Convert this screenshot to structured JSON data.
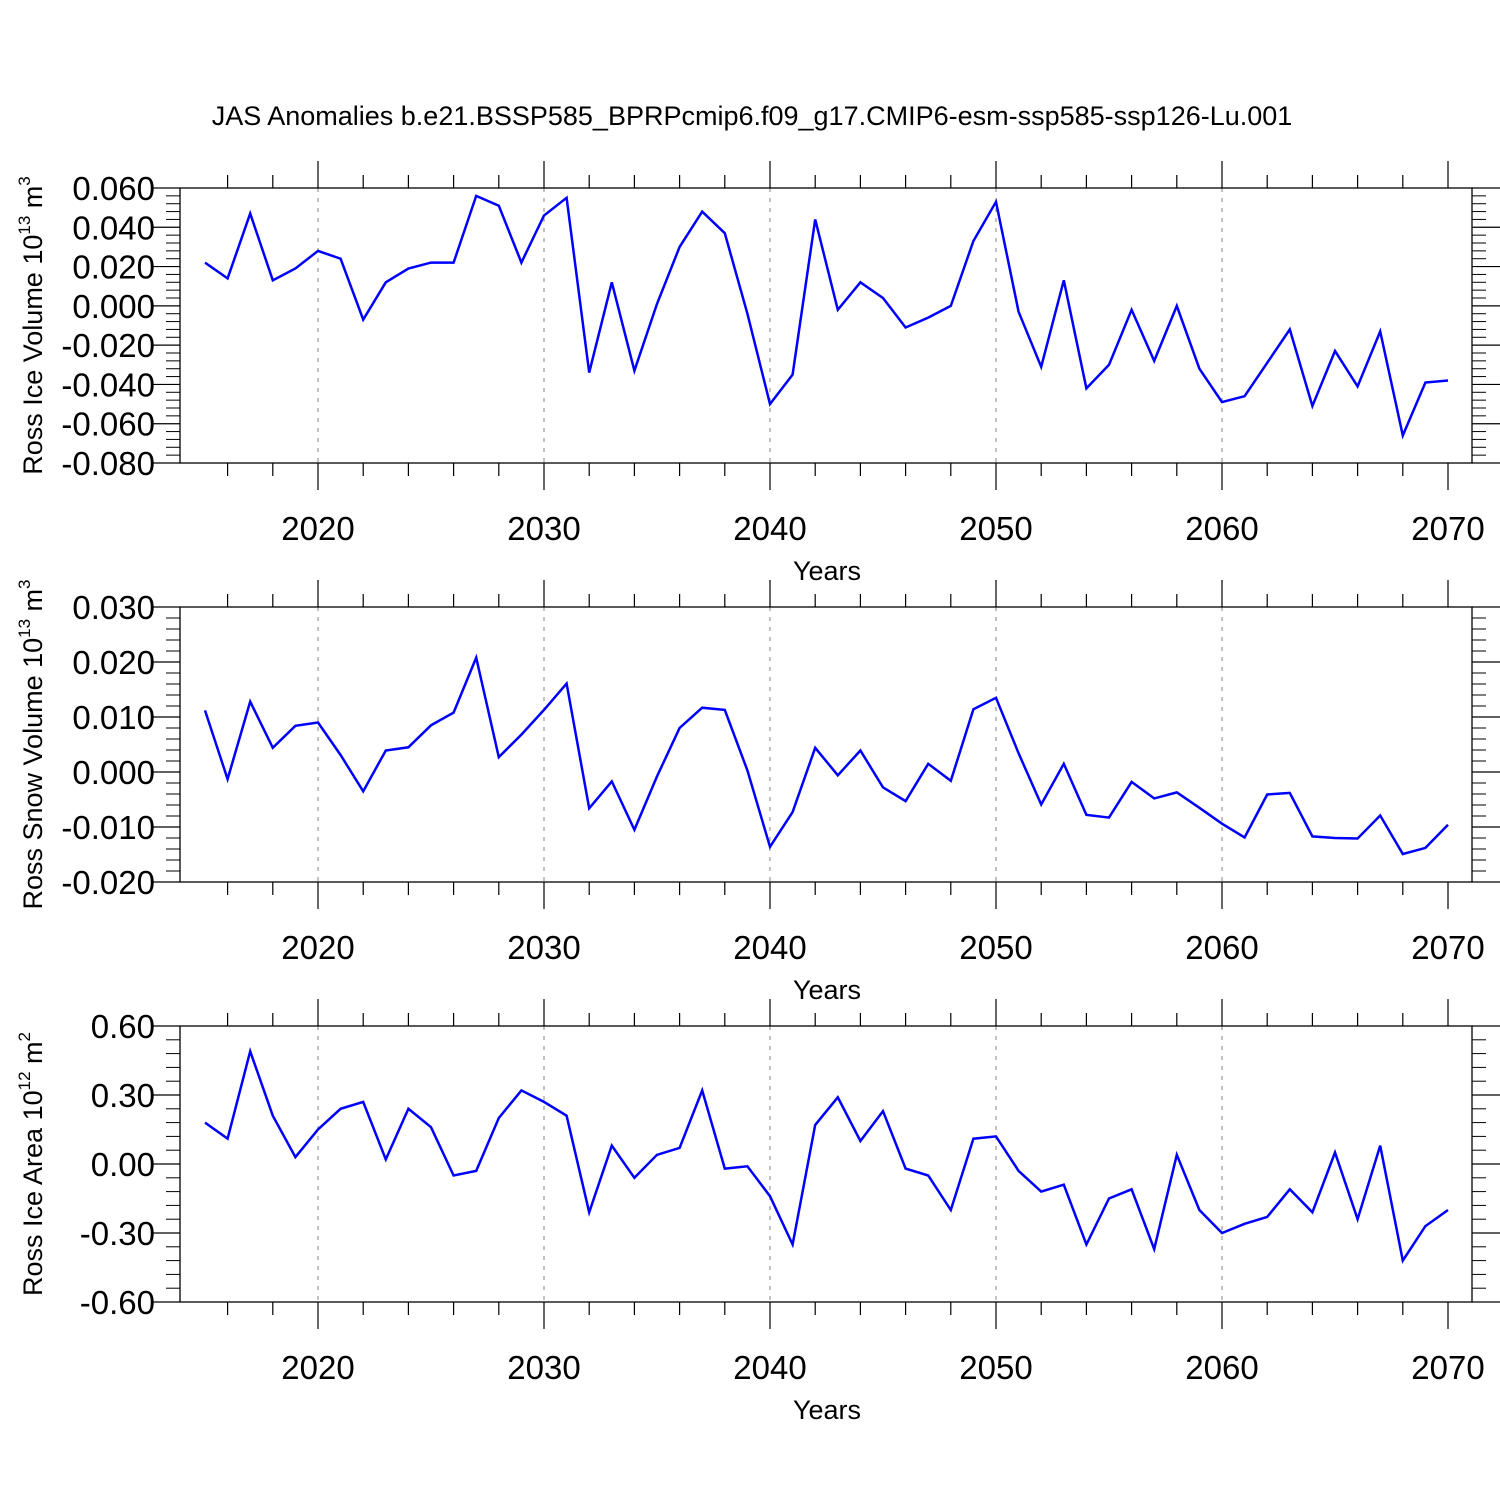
{
  "title": "JAS Anomalies b.e21.BSSP585_BPRPcmip6.f09_g17.CMIP6-esm-ssp585-ssp126-Lu.001",
  "colors": {
    "line": "#0000ff",
    "axis": "#000000",
    "grid": "#999999"
  },
  "chart_data": [
    {
      "type": "line",
      "ylabel": "Ross Ice Volume 10",
      "ylabel_sup": "13",
      "ylabel_unit": "m",
      "ylabel_unit_sup": "3",
      "xlabel": "Years",
      "xlim": [
        2015,
        2070
      ],
      "ylim": [
        -0.08,
        0.06
      ],
      "yticks": [
        0.06,
        0.04,
        0.02,
        0.0,
        -0.02,
        -0.04,
        -0.06,
        -0.08
      ],
      "yticklabels": [
        "0.060",
        "0.040",
        "0.020",
        "0.000",
        "-0.020",
        "-0.040",
        "-0.060",
        "-0.080"
      ],
      "xticks": [
        2020,
        2030,
        2040,
        2050,
        2060,
        2070
      ],
      "xticklabels": [
        "2020",
        "2030",
        "2040",
        "2050",
        "2060",
        "2070"
      ],
      "grid": "vertical dashed at major x ticks",
      "x": [
        2015,
        2016,
        2017,
        2018,
        2019,
        2020,
        2021,
        2022,
        2023,
        2024,
        2025,
        2026,
        2027,
        2028,
        2029,
        2030,
        2031,
        2032,
        2033,
        2034,
        2035,
        2036,
        2037,
        2038,
        2039,
        2040,
        2041,
        2042,
        2043,
        2044,
        2045,
        2046,
        2047,
        2048,
        2049,
        2050,
        2051,
        2052,
        2053,
        2054,
        2055,
        2056,
        2057,
        2058,
        2059,
        2060,
        2061,
        2062,
        2063,
        2064,
        2065,
        2066,
        2067,
        2068,
        2069,
        2070
      ],
      "values": [
        0.022,
        0.014,
        0.047,
        0.013,
        0.019,
        0.028,
        0.024,
        -0.007,
        0.012,
        0.019,
        0.022,
        0.022,
        0.056,
        0.051,
        0.022,
        0.046,
        0.055,
        -0.034,
        0.012,
        -0.033,
        0.001,
        0.03,
        0.048,
        0.037,
        -0.004,
        -0.05,
        -0.035,
        0.044,
        -0.002,
        0.012,
        0.004,
        -0.011,
        -0.006,
        0.0,
        0.033,
        0.053,
        -0.003,
        -0.031,
        0.013,
        -0.042,
        -0.03,
        -0.002,
        -0.028,
        0.0,
        -0.032,
        -0.049,
        -0.046,
        -0.029,
        -0.012,
        -0.051,
        -0.023,
        -0.041,
        -0.013,
        -0.066,
        -0.039,
        -0.038
      ]
    },
    {
      "type": "line",
      "ylabel": "Ross Snow Volume 10",
      "ylabel_sup": "13",
      "ylabel_unit": "m",
      "ylabel_unit_sup": "3",
      "xlabel": "Years",
      "xlim": [
        2015,
        2070
      ],
      "ylim": [
        -0.02,
        0.03
      ],
      "yticks": [
        0.03,
        0.02,
        0.01,
        0.0,
        -0.01,
        -0.02
      ],
      "yticklabels": [
        "0.030",
        "0.020",
        "0.010",
        "0.000",
        "-0.010",
        "-0.020"
      ],
      "xticks": [
        2020,
        2030,
        2040,
        2050,
        2060,
        2070
      ],
      "xticklabels": [
        "2020",
        "2030",
        "2040",
        "2050",
        "2060",
        "2070"
      ],
      "grid": "vertical dashed at major x ticks",
      "x": [
        2015,
        2016,
        2017,
        2018,
        2019,
        2020,
        2021,
        2022,
        2023,
        2024,
        2025,
        2026,
        2027,
        2028,
        2029,
        2030,
        2031,
        2032,
        2033,
        2034,
        2035,
        2036,
        2037,
        2038,
        2039,
        2040,
        2041,
        2042,
        2043,
        2044,
        2045,
        2046,
        2047,
        2048,
        2049,
        2050,
        2051,
        2052,
        2053,
        2054,
        2055,
        2056,
        2057,
        2058,
        2059,
        2060,
        2061,
        2062,
        2063,
        2064,
        2065,
        2066,
        2067,
        2068,
        2069,
        2070
      ],
      "values": [
        0.0112,
        -0.0013,
        0.0128,
        0.0044,
        0.0084,
        0.009,
        0.0031,
        -0.0035,
        0.0039,
        0.0045,
        0.0085,
        0.0108,
        0.0208,
        0.0027,
        0.0068,
        0.0113,
        0.0161,
        -0.0066,
        -0.0017,
        -0.0105,
        -0.0008,
        0.008,
        0.0117,
        0.0113,
        0.0003,
        -0.0136,
        -0.0073,
        0.0044,
        -0.0006,
        0.0039,
        -0.0028,
        -0.0053,
        0.0015,
        -0.0016,
        0.0114,
        0.0135,
        0.0034,
        -0.0059,
        0.0015,
        -0.0078,
        -0.0083,
        -0.0018,
        -0.0048,
        -0.0037,
        -0.0065,
        -0.0094,
        -0.0119,
        -0.0041,
        -0.0038,
        -0.0117,
        -0.012,
        -0.0121,
        -0.0079,
        -0.0149,
        -0.0138,
        -0.0096
      ]
    },
    {
      "type": "line",
      "ylabel": "Ross Ice Area 10",
      "ylabel_sup": "12",
      "ylabel_unit": "m",
      "ylabel_unit_sup": "2",
      "xlabel": "Years",
      "xlim": [
        2015,
        2070
      ],
      "ylim": [
        -0.6,
        0.6
      ],
      "yticks": [
        0.6,
        0.3,
        0.0,
        -0.3,
        -0.6
      ],
      "yticklabels": [
        "0.60",
        "0.30",
        "0.00",
        "-0.30",
        "-0.60"
      ],
      "xticks": [
        2020,
        2030,
        2040,
        2050,
        2060,
        2070
      ],
      "xticklabels": [
        "2020",
        "2030",
        "2040",
        "2050",
        "2060",
        "2070"
      ],
      "grid": "vertical dashed at major x ticks",
      "x": [
        2015,
        2016,
        2017,
        2018,
        2019,
        2020,
        2021,
        2022,
        2023,
        2024,
        2025,
        2026,
        2027,
        2028,
        2029,
        2030,
        2031,
        2032,
        2033,
        2034,
        2035,
        2036,
        2037,
        2038,
        2039,
        2040,
        2041,
        2042,
        2043,
        2044,
        2045,
        2046,
        2047,
        2048,
        2049,
        2050,
        2051,
        2052,
        2053,
        2054,
        2055,
        2056,
        2057,
        2058,
        2059,
        2060,
        2061,
        2062,
        2063,
        2064,
        2065,
        2066,
        2067,
        2068,
        2069,
        2070
      ],
      "values": [
        0.18,
        0.11,
        0.49,
        0.21,
        0.03,
        0.15,
        0.24,
        0.27,
        0.02,
        0.24,
        0.16,
        -0.05,
        -0.03,
        0.2,
        0.32,
        0.27,
        0.21,
        -0.21,
        0.08,
        -0.06,
        0.04,
        0.07,
        0.32,
        -0.02,
        -0.01,
        -0.14,
        -0.35,
        0.17,
        0.29,
        0.1,
        0.23,
        -0.02,
        -0.05,
        -0.2,
        0.11,
        0.12,
        -0.03,
        -0.12,
        -0.09,
        -0.35,
        -0.15,
        -0.11,
        -0.37,
        0.04,
        -0.2,
        -0.3,
        -0.26,
        -0.23,
        -0.11,
        -0.21,
        0.05,
        -0.24,
        0.08,
        -0.42,
        -0.27,
        -0.2
      ]
    }
  ]
}
